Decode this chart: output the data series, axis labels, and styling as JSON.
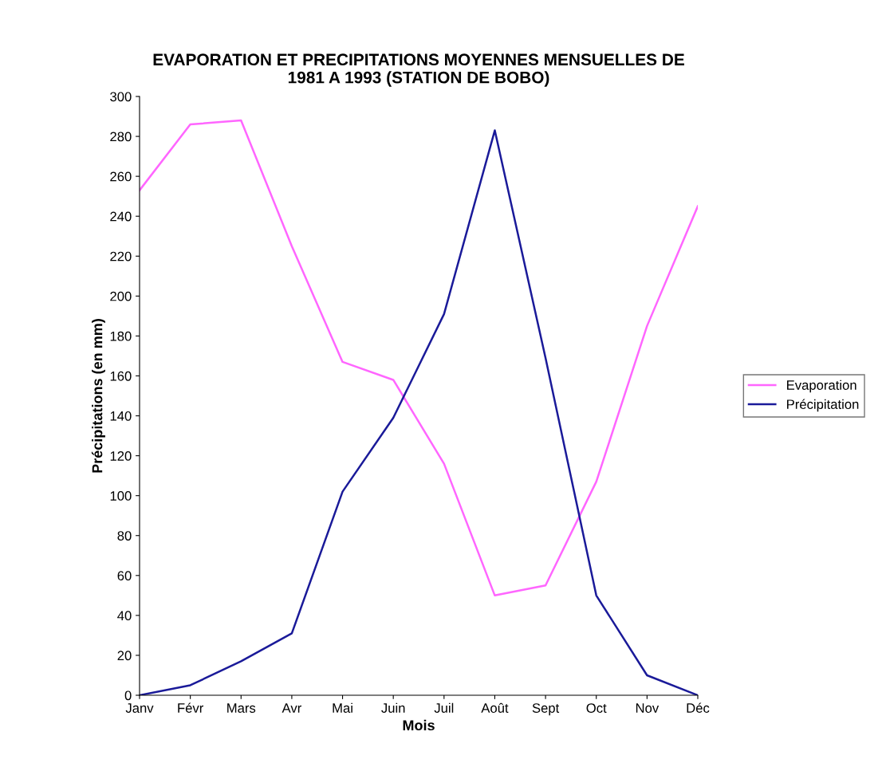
{
  "chart_data": {
    "type": "line",
    "title": "EVAPORATION ET PRECIPITATIONS MOYENNES MENSUELLES DE\n1981 A 1993 (STATION DE BOBO)",
    "xlabel": "Mois",
    "ylabel": "Précipitations (en mm)",
    "categories": [
      "Janv",
      "Févr",
      "Mars",
      "Avr",
      "Mai",
      "Juin",
      "Juil",
      "Août",
      "Sept",
      "Oct",
      "Nov",
      "Déc"
    ],
    "series": [
      {
        "name": "Evaporation",
        "color": "#ff66ff",
        "values": [
          253,
          286,
          288,
          225,
          167,
          158,
          116,
          50,
          55,
          107,
          185,
          245
        ]
      },
      {
        "name": "Précipitation",
        "color": "#1a1a99",
        "values": [
          0,
          5,
          17,
          31,
          102,
          139,
          191,
          283,
          169,
          50,
          10,
          0
        ]
      }
    ],
    "ylim": [
      0,
      300
    ],
    "yticks": [
      0,
      20,
      40,
      60,
      80,
      100,
      120,
      140,
      160,
      180,
      200,
      220,
      240,
      260,
      280,
      300
    ],
    "grid": false,
    "legend": "right",
    "marker": "none",
    "line_style": "solid"
  }
}
